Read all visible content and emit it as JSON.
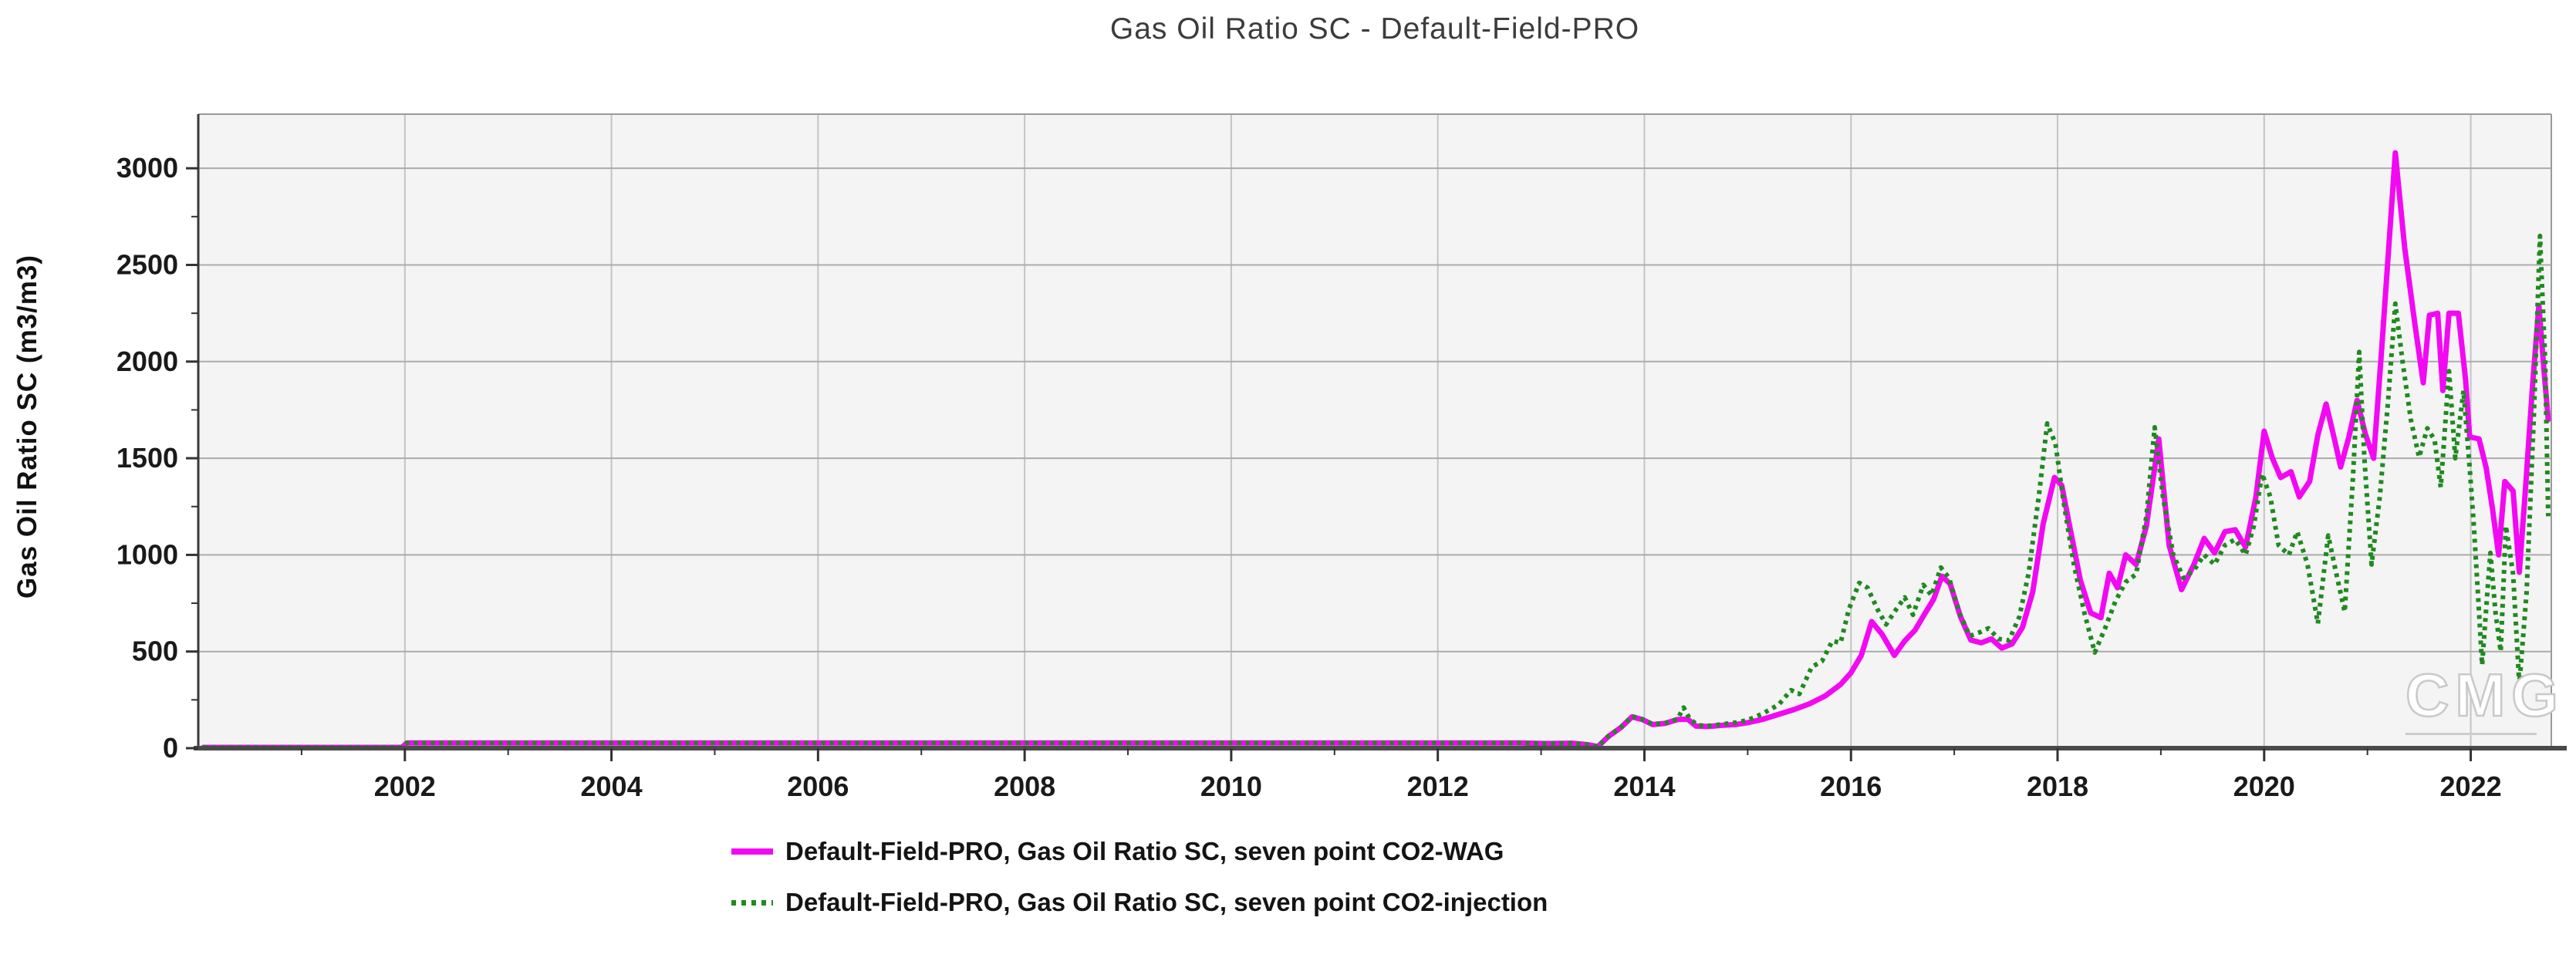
{
  "title": "Gas Oil Ratio SC - Default-Field-PRO",
  "watermark": "CMG",
  "chart_data": {
    "type": "line",
    "title": "Gas Oil Ratio SC - Default-Field-PRO",
    "xlabel": "",
    "ylabel": "Gas Oil Ratio SC (m3/m3)",
    "xlim": [
      2000.0,
      2022.78
    ],
    "ylim": [
      0,
      3280
    ],
    "x_tick_labels": [
      "2002",
      "2004",
      "2006",
      "2008",
      "2010",
      "2012",
      "2014",
      "2016",
      "2018",
      "2020",
      "2022"
    ],
    "x_ticks": [
      2002,
      2004,
      2006,
      2008,
      2010,
      2012,
      2014,
      2016,
      2018,
      2020,
      2022
    ],
    "x_minor_ticks": [
      2001,
      2003,
      2005,
      2007,
      2009,
      2011,
      2013,
      2015,
      2017,
      2019,
      2021
    ],
    "y_tick_labels": [
      "0",
      "500",
      "1000",
      "1500",
      "2000",
      "2500",
      "3000"
    ],
    "y_ticks": [
      0,
      500,
      1000,
      1500,
      2000,
      2500,
      3000
    ],
    "y_minor_ticks": [
      250,
      750,
      1250,
      1750,
      2250,
      2750
    ],
    "grid": true,
    "legend_position": "bottom",
    "plot_bg": "#f4f4f4",
    "grid_color_h": "#ababab",
    "grid_color_v": "#c4c4c4",
    "axis_color": "#4a4a4a",
    "series": [
      {
        "id": "co2-wag",
        "name": "Default-Field-PRO, Gas Oil Ratio SC, seven point CO2-WAG",
        "color": "#f308f3",
        "style": "solid",
        "points": [
          [
            2000.05,
            4
          ],
          [
            2001,
            4
          ],
          [
            2001.97,
            4
          ],
          [
            2002.02,
            27
          ],
          [
            2003,
            27
          ],
          [
            2004,
            27
          ],
          [
            2005,
            27
          ],
          [
            2006,
            27
          ],
          [
            2007,
            27
          ],
          [
            2008,
            27
          ],
          [
            2009,
            27
          ],
          [
            2010,
            27
          ],
          [
            2011,
            27
          ],
          [
            2012,
            27
          ],
          [
            2012.8,
            27
          ],
          [
            2013.05,
            24
          ],
          [
            2013.3,
            26
          ],
          [
            2013.45,
            18
          ],
          [
            2013.55,
            8
          ],
          [
            2013.65,
            60
          ],
          [
            2013.78,
            110
          ],
          [
            2013.88,
            162
          ],
          [
            2013.98,
            148
          ],
          [
            2014.08,
            122
          ],
          [
            2014.2,
            128
          ],
          [
            2014.32,
            148
          ],
          [
            2014.42,
            150
          ],
          [
            2014.5,
            114
          ],
          [
            2014.62,
            112
          ],
          [
            2014.75,
            118
          ],
          [
            2014.88,
            122
          ],
          [
            2015.0,
            132
          ],
          [
            2015.15,
            150
          ],
          [
            2015.3,
            175
          ],
          [
            2015.45,
            200
          ],
          [
            2015.6,
            230
          ],
          [
            2015.75,
            270
          ],
          [
            2015.9,
            330
          ],
          [
            2016.0,
            390
          ],
          [
            2016.1,
            480
          ],
          [
            2016.2,
            655
          ],
          [
            2016.3,
            590
          ],
          [
            2016.42,
            480
          ],
          [
            2016.52,
            555
          ],
          [
            2016.62,
            610
          ],
          [
            2016.72,
            700
          ],
          [
            2016.8,
            770
          ],
          [
            2016.88,
            890
          ],
          [
            2016.96,
            850
          ],
          [
            2017.06,
            680
          ],
          [
            2017.16,
            560
          ],
          [
            2017.26,
            545
          ],
          [
            2017.36,
            565
          ],
          [
            2017.46,
            518
          ],
          [
            2017.56,
            540
          ],
          [
            2017.66,
            625
          ],
          [
            2017.76,
            810
          ],
          [
            2017.86,
            1160
          ],
          [
            2017.97,
            1400
          ],
          [
            2018.04,
            1360
          ],
          [
            2018.12,
            1140
          ],
          [
            2018.22,
            870
          ],
          [
            2018.32,
            700
          ],
          [
            2018.42,
            675
          ],
          [
            2018.5,
            905
          ],
          [
            2018.58,
            830
          ],
          [
            2018.66,
            1000
          ],
          [
            2018.76,
            950
          ],
          [
            2018.86,
            1150
          ],
          [
            2018.98,
            1600
          ],
          [
            2019.08,
            1050
          ],
          [
            2019.2,
            820
          ],
          [
            2019.32,
            950
          ],
          [
            2019.42,
            1085
          ],
          [
            2019.52,
            1010
          ],
          [
            2019.62,
            1120
          ],
          [
            2019.72,
            1130
          ],
          [
            2019.82,
            1040
          ],
          [
            2019.92,
            1300
          ],
          [
            2020.0,
            1640
          ],
          [
            2020.08,
            1500
          ],
          [
            2020.16,
            1400
          ],
          [
            2020.26,
            1430
          ],
          [
            2020.34,
            1300
          ],
          [
            2020.44,
            1380
          ],
          [
            2020.52,
            1620
          ],
          [
            2020.6,
            1780
          ],
          [
            2020.68,
            1600
          ],
          [
            2020.74,
            1455
          ],
          [
            2020.82,
            1610
          ],
          [
            2020.9,
            1800
          ],
          [
            2020.98,
            1625
          ],
          [
            2021.06,
            1500
          ],
          [
            2021.14,
            2080
          ],
          [
            2021.27,
            3080
          ],
          [
            2021.36,
            2590
          ],
          [
            2021.46,
            2190
          ],
          [
            2021.54,
            1890
          ],
          [
            2021.6,
            2240
          ],
          [
            2021.68,
            2250
          ],
          [
            2021.73,
            1850
          ],
          [
            2021.79,
            2250
          ],
          [
            2021.88,
            2250
          ],
          [
            2021.95,
            1905
          ],
          [
            2021.99,
            1610
          ],
          [
            2022.08,
            1600
          ],
          [
            2022.15,
            1450
          ],
          [
            2022.21,
            1240
          ],
          [
            2022.27,
            1000
          ],
          [
            2022.33,
            1380
          ],
          [
            2022.41,
            1330
          ],
          [
            2022.47,
            910
          ],
          [
            2022.53,
            1340
          ],
          [
            2022.6,
            1890
          ],
          [
            2022.66,
            2290
          ],
          [
            2022.71,
            1950
          ],
          [
            2022.75,
            1700
          ]
        ]
      },
      {
        "id": "co2-injection",
        "name": "Default-Field-PRO, Gas Oil Ratio SC, seven point CO2-injection",
        "color": "#1f8a1f",
        "style": "dotted",
        "points": [
          [
            2000.05,
            4
          ],
          [
            2001,
            4
          ],
          [
            2001.97,
            4
          ],
          [
            2002.02,
            27
          ],
          [
            2003,
            27
          ],
          [
            2004,
            27
          ],
          [
            2005,
            27
          ],
          [
            2006,
            27
          ],
          [
            2007,
            27
          ],
          [
            2008,
            27
          ],
          [
            2009,
            27
          ],
          [
            2010,
            27
          ],
          [
            2011,
            27
          ],
          [
            2012,
            27
          ],
          [
            2012.8,
            27
          ],
          [
            2013.05,
            24
          ],
          [
            2013.3,
            26
          ],
          [
            2013.45,
            18
          ],
          [
            2013.55,
            8
          ],
          [
            2013.65,
            62
          ],
          [
            2013.78,
            112
          ],
          [
            2013.88,
            165
          ],
          [
            2013.98,
            150
          ],
          [
            2014.08,
            124
          ],
          [
            2014.2,
            130
          ],
          [
            2014.32,
            150
          ],
          [
            2014.38,
            210
          ],
          [
            2014.44,
            150
          ],
          [
            2014.52,
            118
          ],
          [
            2014.64,
            116
          ],
          [
            2014.76,
            124
          ],
          [
            2014.88,
            132
          ],
          [
            2015.0,
            145
          ],
          [
            2015.15,
            180
          ],
          [
            2015.3,
            225
          ],
          [
            2015.42,
            300
          ],
          [
            2015.5,
            280
          ],
          [
            2015.62,
            420
          ],
          [
            2015.72,
            450
          ],
          [
            2015.82,
            555
          ],
          [
            2015.9,
            545
          ],
          [
            2015.98,
            720
          ],
          [
            2016.08,
            855
          ],
          [
            2016.16,
            830
          ],
          [
            2016.26,
            715
          ],
          [
            2016.34,
            640
          ],
          [
            2016.44,
            720
          ],
          [
            2016.52,
            780
          ],
          [
            2016.6,
            690
          ],
          [
            2016.7,
            845
          ],
          [
            2016.78,
            790
          ],
          [
            2016.87,
            935
          ],
          [
            2016.95,
            880
          ],
          [
            2017.05,
            700
          ],
          [
            2017.15,
            580
          ],
          [
            2017.25,
            600
          ],
          [
            2017.33,
            620
          ],
          [
            2017.43,
            565
          ],
          [
            2017.53,
            558
          ],
          [
            2017.63,
            680
          ],
          [
            2017.72,
            905
          ],
          [
            2017.82,
            1310
          ],
          [
            2017.9,
            1680
          ],
          [
            2017.98,
            1575
          ],
          [
            2018.06,
            1270
          ],
          [
            2018.16,
            945
          ],
          [
            2018.26,
            700
          ],
          [
            2018.36,
            495
          ],
          [
            2018.46,
            620
          ],
          [
            2018.56,
            760
          ],
          [
            2018.66,
            860
          ],
          [
            2018.76,
            900
          ],
          [
            2018.86,
            1200
          ],
          [
            2018.94,
            1660
          ],
          [
            2019.02,
            1300
          ],
          [
            2019.12,
            1000
          ],
          [
            2019.22,
            880
          ],
          [
            2019.32,
            920
          ],
          [
            2019.42,
            1000
          ],
          [
            2019.52,
            950
          ],
          [
            2019.62,
            1050
          ],
          [
            2019.72,
            1080
          ],
          [
            2019.82,
            1000
          ],
          [
            2019.9,
            1150
          ],
          [
            2019.98,
            1420
          ],
          [
            2020.06,
            1300
          ],
          [
            2020.14,
            1050
          ],
          [
            2020.24,
            1000
          ],
          [
            2020.32,
            1120
          ],
          [
            2020.42,
            950
          ],
          [
            2020.52,
            645
          ],
          [
            2020.62,
            1100
          ],
          [
            2020.7,
            900
          ],
          [
            2020.78,
            705
          ],
          [
            2020.86,
            1400
          ],
          [
            2020.92,
            2050
          ],
          [
            2020.97,
            1500
          ],
          [
            2021.04,
            950
          ],
          [
            2021.12,
            1300
          ],
          [
            2021.2,
            1800
          ],
          [
            2021.27,
            2300
          ],
          [
            2021.34,
            2000
          ],
          [
            2021.42,
            1700
          ],
          [
            2021.5,
            1505
          ],
          [
            2021.58,
            1655
          ],
          [
            2021.65,
            1595
          ],
          [
            2021.71,
            1350
          ],
          [
            2021.79,
            1950
          ],
          [
            2021.85,
            1500
          ],
          [
            2021.93,
            1850
          ],
          [
            2021.99,
            1450
          ],
          [
            2022.03,
            1150
          ],
          [
            2022.07,
            800
          ],
          [
            2022.11,
            430
          ],
          [
            2022.16,
            800
          ],
          [
            2022.19,
            1010
          ],
          [
            2022.24,
            700
          ],
          [
            2022.29,
            500
          ],
          [
            2022.34,
            1150
          ],
          [
            2022.41,
            900
          ],
          [
            2022.47,
            330
          ],
          [
            2022.54,
            800
          ],
          [
            2022.61,
            1700
          ],
          [
            2022.67,
            2650
          ],
          [
            2022.72,
            2000
          ],
          [
            2022.75,
            1200
          ]
        ]
      }
    ]
  }
}
